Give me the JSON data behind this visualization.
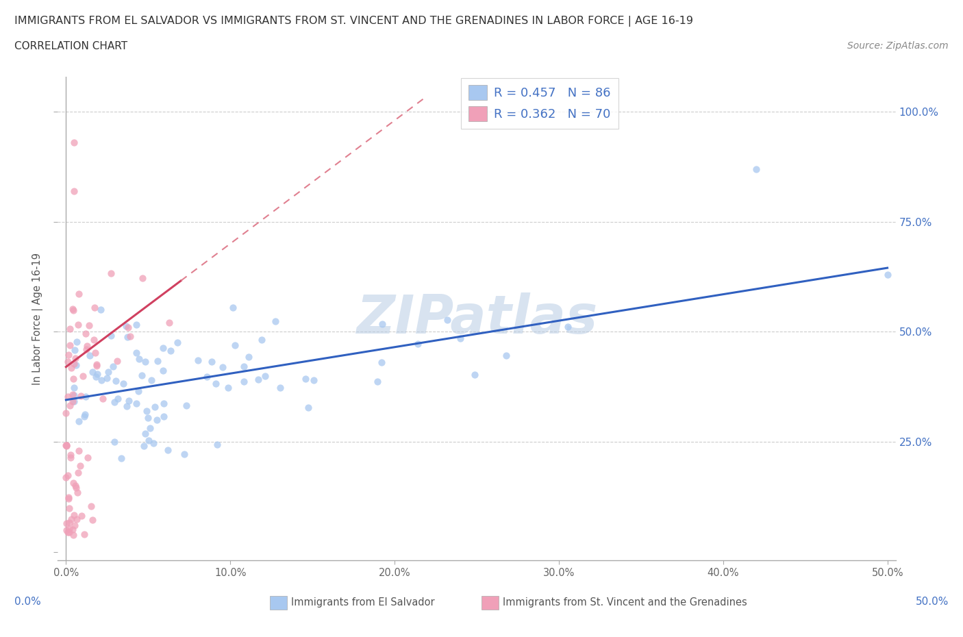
{
  "title_line1": "IMMIGRANTS FROM EL SALVADOR VS IMMIGRANTS FROM ST. VINCENT AND THE GRENADINES IN LABOR FORCE | AGE 16-19",
  "title_line2": "CORRELATION CHART",
  "source_text": "Source: ZipAtlas.com",
  "ylabel": "In Labor Force | Age 16-19",
  "xlim": [
    -0.005,
    0.505
  ],
  "ylim": [
    -0.02,
    1.08
  ],
  "color_blue": "#a8c8f0",
  "color_pink": "#f0a0b8",
  "color_line_blue": "#3060c0",
  "color_line_pink": "#d04060",
  "color_line_pink_dash": "#e08090",
  "R_blue": 0.457,
  "N_blue": 86,
  "R_pink": 0.362,
  "N_pink": 70,
  "legend_text_color": "#4472c4",
  "watermark_text": "ZIPatlas",
  "watermark_color": "#b8cce4",
  "blue_intercept": 0.345,
  "blue_slope": 0.6,
  "pink_intercept": 0.42,
  "pink_slope": 2.8
}
